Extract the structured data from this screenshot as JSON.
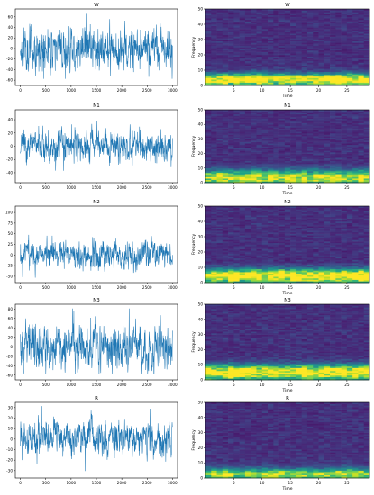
{
  "chart_data": [
    {
      "type": "line",
      "title": "W",
      "xticks": [
        0,
        500,
        1000,
        1500,
        2000,
        2500,
        3000
      ],
      "yticks": [
        -60,
        -40,
        -20,
        0,
        20,
        40,
        60
      ],
      "xlim": [
        -100,
        3100
      ],
      "ylim": [
        -70,
        75
      ],
      "color": "#1f77b4"
    },
    {
      "type": "heatmap",
      "title": "W",
      "xlabel": "Time",
      "ylabel": "Frequency",
      "xticks": [
        5,
        10,
        15,
        20,
        25
      ],
      "yticks": [
        0,
        10,
        20,
        30,
        40,
        50
      ],
      "xlim": [
        0,
        29
      ],
      "ylim": [
        0,
        50
      ],
      "colormap": "viridis"
    },
    {
      "type": "line",
      "title": "N1",
      "xticks": [
        0,
        500,
        1000,
        1500,
        2000,
        2500,
        3000
      ],
      "yticks": [
        -40,
        -20,
        0,
        20,
        40
      ],
      "xlim": [
        -100,
        3100
      ],
      "ylim": [
        -55,
        55
      ],
      "color": "#1f77b4"
    },
    {
      "type": "heatmap",
      "title": "N1",
      "xlabel": "Time",
      "ylabel": "Frequency",
      "xticks": [
        5,
        10,
        15,
        20,
        25
      ],
      "yticks": [
        0,
        10,
        20,
        30,
        40,
        50
      ],
      "xlim": [
        0,
        29
      ],
      "ylim": [
        0,
        50
      ],
      "colormap": "viridis"
    },
    {
      "type": "line",
      "title": "N2",
      "xticks": [
        0,
        500,
        1000,
        1500,
        2000,
        2500,
        3000
      ],
      "yticks": [
        -50,
        -25,
        0,
        25,
        50,
        75,
        100
      ],
      "xlim": [
        -100,
        3100
      ],
      "ylim": [
        -65,
        115
      ],
      "color": "#1f77b4"
    },
    {
      "type": "heatmap",
      "title": "N2",
      "xlabel": "Time",
      "ylabel": "Frequency",
      "xticks": [
        5,
        10,
        15,
        20,
        25
      ],
      "yticks": [
        0,
        10,
        20,
        30,
        40,
        50
      ],
      "xlim": [
        0,
        29
      ],
      "ylim": [
        0,
        50
      ],
      "colormap": "viridis"
    },
    {
      "type": "line",
      "title": "N3",
      "xticks": [
        0,
        500,
        1000,
        1500,
        2000,
        2500,
        3000
      ],
      "yticks": [
        -60,
        -40,
        -20,
        0,
        20,
        40,
        60,
        80
      ],
      "xlim": [
        -100,
        3100
      ],
      "ylim": [
        -70,
        90
      ],
      "color": "#1f77b4"
    },
    {
      "type": "heatmap",
      "title": "N3",
      "xlabel": "Time",
      "ylabel": "Frequency",
      "xticks": [
        5,
        10,
        15,
        20,
        25
      ],
      "yticks": [
        0,
        10,
        20,
        30,
        40,
        50
      ],
      "xlim": [
        0,
        29
      ],
      "ylim": [
        0,
        50
      ],
      "colormap": "viridis"
    },
    {
      "type": "line",
      "title": "R",
      "xticks": [
        0,
        500,
        1000,
        1500,
        2000,
        2500,
        3000
      ],
      "yticks": [
        -30,
        -20,
        -10,
        0,
        10,
        20,
        30
      ],
      "xlim": [
        -100,
        3100
      ],
      "ylim": [
        -37,
        35
      ],
      "color": "#1f77b4"
    },
    {
      "type": "heatmap",
      "title": "R",
      "xlabel": "Time",
      "ylabel": "Frequency",
      "xticks": [
        5,
        10,
        15,
        20,
        25
      ],
      "yticks": [
        0,
        10,
        20,
        30,
        40,
        50
      ],
      "xlim": [
        0,
        29
      ],
      "ylim": [
        0,
        50
      ],
      "colormap": "viridis"
    }
  ]
}
